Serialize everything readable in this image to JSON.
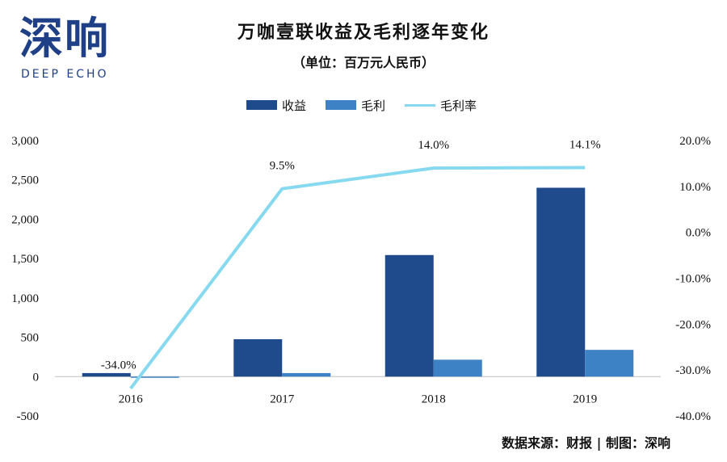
{
  "logo": {
    "cn": "深响",
    "en": "DEEP ECHO"
  },
  "header": {
    "title": "万咖壹联收益及毛利逐年变化",
    "subtitle": "（单位：百万元人民币）"
  },
  "footer": {
    "source": "数据来源：财报 | 制图：深响"
  },
  "colors": {
    "revenue": "#1f4a8c",
    "gross_profit": "#3d82c4",
    "margin": "#86d9ef",
    "text": "#111111"
  },
  "chart_data": {
    "type": "bar",
    "categories": [
      "2016",
      "2017",
      "2018",
      "2019"
    ],
    "series": [
      {
        "name": "收益",
        "kind": "bar",
        "axis": "left",
        "values": [
          45,
          475,
          1545,
          2400
        ]
      },
      {
        "name": "毛利",
        "kind": "bar",
        "axis": "left",
        "values": [
          -15,
          45,
          215,
          340
        ]
      },
      {
        "name": "毛利率",
        "kind": "line",
        "axis": "right",
        "values": [
          -34.0,
          9.5,
          14.0,
          14.1
        ],
        "labels": [
          "-34.0%",
          "9.5%",
          "14.0%",
          "14.1%"
        ]
      }
    ],
    "y_left": {
      "min": -500,
      "max": 3000,
      "ticks": [
        3000,
        2500,
        2000,
        1500,
        1000,
        500,
        0,
        -500
      ],
      "tick_labels": [
        "3,000",
        "2,500",
        "2,000",
        "1,500",
        "1,000",
        "500",
        "0",
        "-500"
      ]
    },
    "y_right": {
      "min": -40,
      "max": 20,
      "ticks": [
        20,
        10,
        0,
        -10,
        -20,
        -30,
        -40
      ],
      "tick_labels": [
        "20.0%",
        "10.0%",
        "0.0%",
        "-10.0%",
        "-20.0%",
        "-30.0%",
        "-40.0%"
      ]
    },
    "legend": {
      "position": "top-center",
      "entries": [
        "收益",
        "毛利",
        "毛利率"
      ]
    },
    "grid": false
  }
}
